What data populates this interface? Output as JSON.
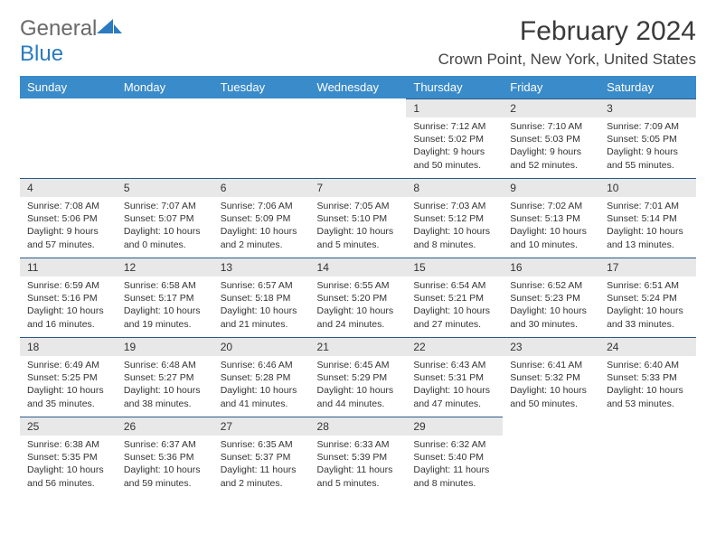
{
  "logo": {
    "text_general": "General",
    "text_blue": "Blue"
  },
  "title": "February 2024",
  "location": "Crown Point, New York, United States",
  "colors": {
    "header_bg": "#3a8bc9",
    "header_text": "#ffffff",
    "daynum_bg": "#e8e8e8",
    "daynum_border": "#2a5a8a",
    "text": "#333333",
    "logo_grey": "#6a6a6a",
    "logo_blue": "#2a7bbf"
  },
  "weekdays": [
    "Sunday",
    "Monday",
    "Tuesday",
    "Wednesday",
    "Thursday",
    "Friday",
    "Saturday"
  ],
  "weeks": [
    [
      null,
      null,
      null,
      null,
      {
        "n": "1",
        "sr": "Sunrise: 7:12 AM",
        "ss": "Sunset: 5:02 PM",
        "dl": "Daylight: 9 hours and 50 minutes."
      },
      {
        "n": "2",
        "sr": "Sunrise: 7:10 AM",
        "ss": "Sunset: 5:03 PM",
        "dl": "Daylight: 9 hours and 52 minutes."
      },
      {
        "n": "3",
        "sr": "Sunrise: 7:09 AM",
        "ss": "Sunset: 5:05 PM",
        "dl": "Daylight: 9 hours and 55 minutes."
      }
    ],
    [
      {
        "n": "4",
        "sr": "Sunrise: 7:08 AM",
        "ss": "Sunset: 5:06 PM",
        "dl": "Daylight: 9 hours and 57 minutes."
      },
      {
        "n": "5",
        "sr": "Sunrise: 7:07 AM",
        "ss": "Sunset: 5:07 PM",
        "dl": "Daylight: 10 hours and 0 minutes."
      },
      {
        "n": "6",
        "sr": "Sunrise: 7:06 AM",
        "ss": "Sunset: 5:09 PM",
        "dl": "Daylight: 10 hours and 2 minutes."
      },
      {
        "n": "7",
        "sr": "Sunrise: 7:05 AM",
        "ss": "Sunset: 5:10 PM",
        "dl": "Daylight: 10 hours and 5 minutes."
      },
      {
        "n": "8",
        "sr": "Sunrise: 7:03 AM",
        "ss": "Sunset: 5:12 PM",
        "dl": "Daylight: 10 hours and 8 minutes."
      },
      {
        "n": "9",
        "sr": "Sunrise: 7:02 AM",
        "ss": "Sunset: 5:13 PM",
        "dl": "Daylight: 10 hours and 10 minutes."
      },
      {
        "n": "10",
        "sr": "Sunrise: 7:01 AM",
        "ss": "Sunset: 5:14 PM",
        "dl": "Daylight: 10 hours and 13 minutes."
      }
    ],
    [
      {
        "n": "11",
        "sr": "Sunrise: 6:59 AM",
        "ss": "Sunset: 5:16 PM",
        "dl": "Daylight: 10 hours and 16 minutes."
      },
      {
        "n": "12",
        "sr": "Sunrise: 6:58 AM",
        "ss": "Sunset: 5:17 PM",
        "dl": "Daylight: 10 hours and 19 minutes."
      },
      {
        "n": "13",
        "sr": "Sunrise: 6:57 AM",
        "ss": "Sunset: 5:18 PM",
        "dl": "Daylight: 10 hours and 21 minutes."
      },
      {
        "n": "14",
        "sr": "Sunrise: 6:55 AM",
        "ss": "Sunset: 5:20 PM",
        "dl": "Daylight: 10 hours and 24 minutes."
      },
      {
        "n": "15",
        "sr": "Sunrise: 6:54 AM",
        "ss": "Sunset: 5:21 PM",
        "dl": "Daylight: 10 hours and 27 minutes."
      },
      {
        "n": "16",
        "sr": "Sunrise: 6:52 AM",
        "ss": "Sunset: 5:23 PM",
        "dl": "Daylight: 10 hours and 30 minutes."
      },
      {
        "n": "17",
        "sr": "Sunrise: 6:51 AM",
        "ss": "Sunset: 5:24 PM",
        "dl": "Daylight: 10 hours and 33 minutes."
      }
    ],
    [
      {
        "n": "18",
        "sr": "Sunrise: 6:49 AM",
        "ss": "Sunset: 5:25 PM",
        "dl": "Daylight: 10 hours and 35 minutes."
      },
      {
        "n": "19",
        "sr": "Sunrise: 6:48 AM",
        "ss": "Sunset: 5:27 PM",
        "dl": "Daylight: 10 hours and 38 minutes."
      },
      {
        "n": "20",
        "sr": "Sunrise: 6:46 AM",
        "ss": "Sunset: 5:28 PM",
        "dl": "Daylight: 10 hours and 41 minutes."
      },
      {
        "n": "21",
        "sr": "Sunrise: 6:45 AM",
        "ss": "Sunset: 5:29 PM",
        "dl": "Daylight: 10 hours and 44 minutes."
      },
      {
        "n": "22",
        "sr": "Sunrise: 6:43 AM",
        "ss": "Sunset: 5:31 PM",
        "dl": "Daylight: 10 hours and 47 minutes."
      },
      {
        "n": "23",
        "sr": "Sunrise: 6:41 AM",
        "ss": "Sunset: 5:32 PM",
        "dl": "Daylight: 10 hours and 50 minutes."
      },
      {
        "n": "24",
        "sr": "Sunrise: 6:40 AM",
        "ss": "Sunset: 5:33 PM",
        "dl": "Daylight: 10 hours and 53 minutes."
      }
    ],
    [
      {
        "n": "25",
        "sr": "Sunrise: 6:38 AM",
        "ss": "Sunset: 5:35 PM",
        "dl": "Daylight: 10 hours and 56 minutes."
      },
      {
        "n": "26",
        "sr": "Sunrise: 6:37 AM",
        "ss": "Sunset: 5:36 PM",
        "dl": "Daylight: 10 hours and 59 minutes."
      },
      {
        "n": "27",
        "sr": "Sunrise: 6:35 AM",
        "ss": "Sunset: 5:37 PM",
        "dl": "Daylight: 11 hours and 2 minutes."
      },
      {
        "n": "28",
        "sr": "Sunrise: 6:33 AM",
        "ss": "Sunset: 5:39 PM",
        "dl": "Daylight: 11 hours and 5 minutes."
      },
      {
        "n": "29",
        "sr": "Sunrise: 6:32 AM",
        "ss": "Sunset: 5:40 PM",
        "dl": "Daylight: 11 hours and 8 minutes."
      },
      null,
      null
    ]
  ]
}
